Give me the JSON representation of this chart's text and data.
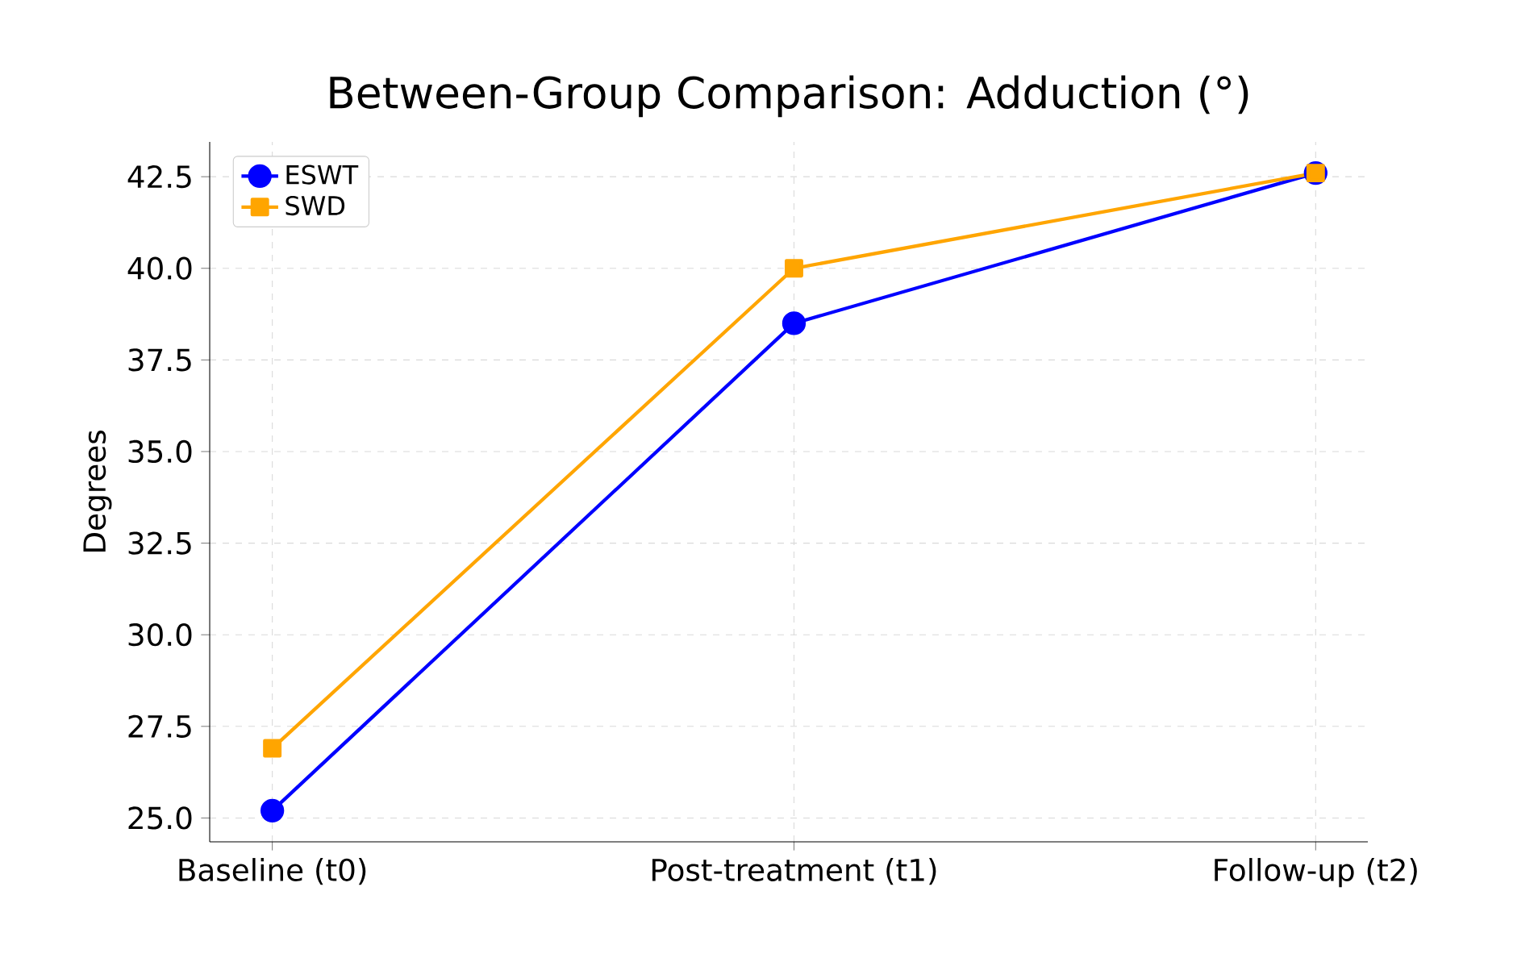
{
  "chart_data": {
    "type": "line",
    "title": "Between-Group Comparison: Adduction (°)",
    "ylabel": "Degrees",
    "categories": [
      "Baseline (t0)",
      "Post-treatment (t1)",
      "Follow-up (t2)"
    ],
    "series": [
      {
        "name": "ESWT",
        "color": "#0000ff",
        "values": [
          25.2,
          38.5,
          42.6
        ],
        "marker": "circle"
      },
      {
        "name": "SWD",
        "color": "#ffa500",
        "values": [
          26.9,
          40.0,
          42.6
        ],
        "marker": "square"
      }
    ],
    "ylim": [
      24.35,
      43.45
    ],
    "yticks": [
      {
        "value": 25,
        "label": "25.0"
      },
      {
        "value": 27.5,
        "label": "27.5"
      },
      {
        "value": 30,
        "label": "30.0"
      },
      {
        "value": 32.5,
        "label": "32.5"
      },
      {
        "value": 35,
        "label": "35.0"
      },
      {
        "value": 37.5,
        "label": "37.5"
      },
      {
        "value": 40,
        "label": "40.0"
      },
      {
        "value": 42.5,
        "label": "42.5"
      }
    ],
    "grid": true,
    "legend": "top left",
    "line_style": "solid"
  }
}
